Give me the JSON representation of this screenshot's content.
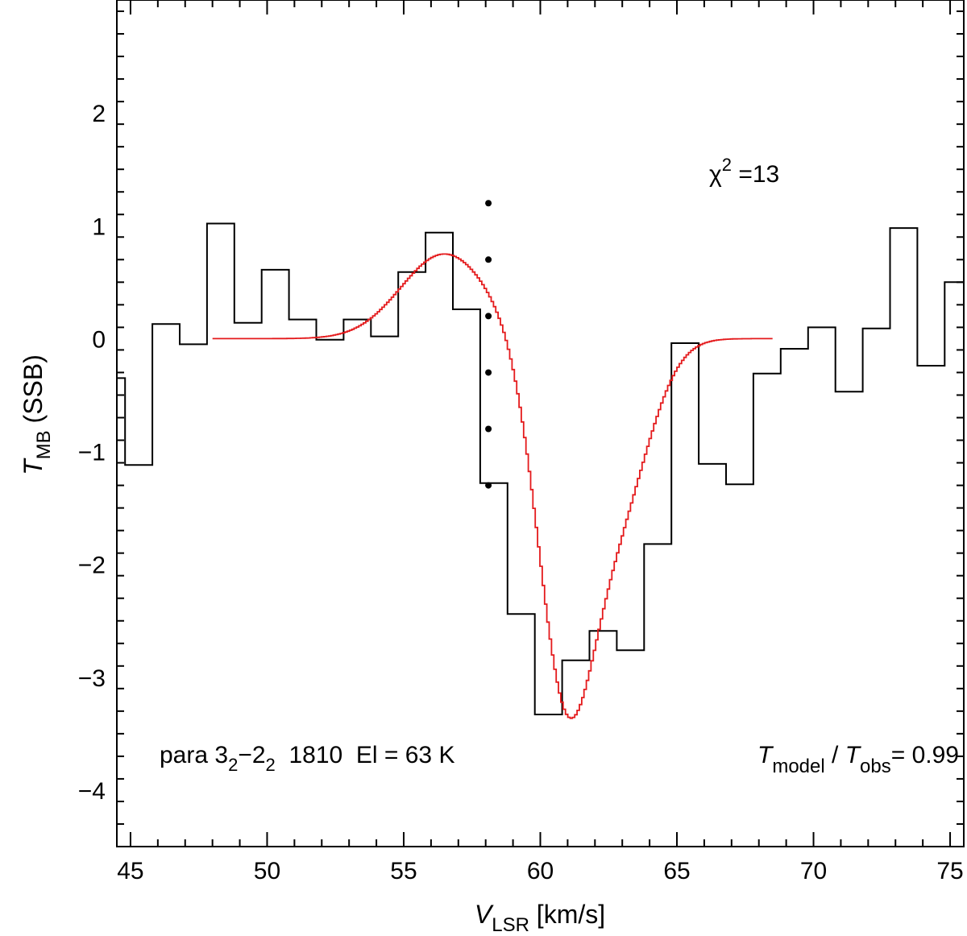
{
  "chart_data": {
    "type": "line",
    "xlim": [
      44.5,
      75.5
    ],
    "ylim": [
      -4.5,
      3.0
    ],
    "x_ticks": [
      45,
      50,
      55,
      60,
      65,
      70,
      75
    ],
    "x_tick_labels": [
      "45",
      "50",
      "55",
      "60",
      "65",
      "70",
      "75"
    ],
    "y_ticks": [
      -4,
      -3,
      -2,
      -1,
      0,
      1,
      2
    ],
    "y_tick_labels": [
      "−4",
      "−3",
      "−2",
      "−1",
      "0",
      "1",
      "2"
    ],
    "xlabel": {
      "main": "V",
      "sub": "LSR",
      "unit": " [km/s]"
    },
    "ylabel": {
      "main": "T",
      "sub": "MB",
      "rest": " (SSB)"
    },
    "grid": false,
    "series": [
      {
        "style": "histogram",
        "color": "#000000",
        "bin_width": 1.0,
        "bin_centers": [
          44.3,
          45.3,
          46.3,
          47.3,
          48.3,
          49.3,
          50.3,
          51.3,
          52.3,
          53.3,
          54.3,
          55.3,
          56.3,
          57.3,
          58.3,
          59.3,
          60.3,
          61.3,
          62.3,
          63.3,
          64.3,
          65.3,
          66.3,
          67.3,
          68.3,
          69.3,
          70.3,
          71.3,
          72.3,
          73.3,
          74.3,
          75.3
        ],
        "values": [
          -0.35,
          -1.12,
          0.13,
          -0.05,
          1.02,
          0.14,
          0.61,
          0.17,
          -0.01,
          0.17,
          0.02,
          0.59,
          0.94,
          0.26,
          -1.28,
          -2.44,
          -3.33,
          -2.85,
          -2.59,
          -2.76,
          -1.82,
          -0.04,
          -1.11,
          -1.29,
          -0.31,
          -0.09,
          0.1,
          -0.47,
          0.09,
          0.98,
          -0.24,
          0.5
        ]
      },
      {
        "style": "model",
        "color": "#e41a1c",
        "x_range": [
          48.0,
          68.5
        ],
        "components": [
          {
            "amplitude": 0.75,
            "center": 56.5,
            "sigma": 1.6
          },
          {
            "amplitude": -2.9,
            "center": 60.9,
            "sigma": 1.0
          },
          {
            "amplitude": -1.45,
            "center": 62.8,
            "sigma": 1.2
          }
        ]
      }
    ],
    "markers": {
      "x": 58.1,
      "y": [
        1.2,
        0.7,
        0.2,
        -0.3,
        -0.8,
        -1.3
      ],
      "color": "#000000"
    },
    "annotations": {
      "chi2": {
        "symbol": "χ",
        "power": "2",
        "text": " =13"
      },
      "line_id": {
        "prefix": "para 3",
        "sub1": "2",
        "mid": "−2",
        "sub2": "2",
        "suffix": "  1810  El = 63 K"
      },
      "ratio": {
        "t1": "T",
        "sub1": "model",
        "slash": " / ",
        "t2": "T",
        "sub2": "obs",
        "value": "= 0.99"
      }
    }
  }
}
